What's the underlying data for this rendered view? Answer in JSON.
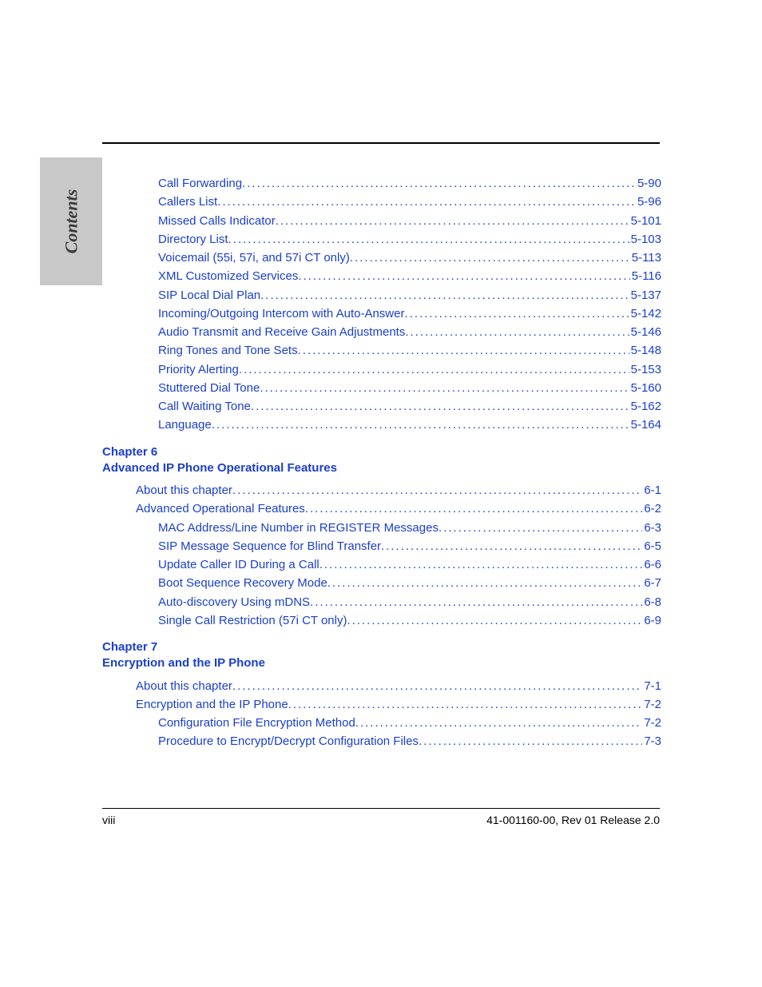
{
  "colors": {
    "link": "#1a3fcc",
    "sidebar_bg": "#c8c8c8",
    "sidebar_text": "#3a3a3a",
    "rule": "#000000",
    "page_bg": "#ffffff",
    "footer_text": "#000000"
  },
  "typography": {
    "body_font": "Arial, Helvetica, sans-serif",
    "body_size_pt": 11,
    "sidebar_font": "Times New Roman, serif",
    "sidebar_style": "italic bold",
    "sidebar_size_pt": 16
  },
  "sidebar": {
    "label": "Contents"
  },
  "sections": [
    {
      "type": "entries",
      "entries": [
        {
          "label": "Call Forwarding",
          "page": "5-90",
          "indent": 2
        },
        {
          "label": "Callers List",
          "page": "5-96",
          "indent": 2
        },
        {
          "label": "Missed Calls Indicator",
          "page": "5-101",
          "indent": 2
        },
        {
          "label": "Directory List",
          "page": "5-103",
          "indent": 2
        },
        {
          "label": "Voicemail (55i, 57i, and 57i CT only)",
          "page": "5-113",
          "indent": 2
        },
        {
          "label": "XML Customized Services",
          "page": "5-116",
          "indent": 2
        },
        {
          "label": "SIP Local Dial Plan",
          "page": "5-137",
          "indent": 2
        },
        {
          "label": "Incoming/Outgoing Intercom with Auto-Answer",
          "page": "5-142",
          "indent": 2
        },
        {
          "label": "Audio Transmit and Receive Gain Adjustments",
          "page": "5-146",
          "indent": 2
        },
        {
          "label": "Ring Tones and Tone Sets",
          "page": "5-148",
          "indent": 2
        },
        {
          "label": "Priority Alerting",
          "page": "5-153",
          "indent": 2
        },
        {
          "label": "Stuttered Dial Tone",
          "page": "5-160",
          "indent": 2
        },
        {
          "label": "Call Waiting Tone",
          "page": "5-162",
          "indent": 2
        },
        {
          "label": "Language",
          "page": "5-164",
          "indent": 2
        }
      ]
    },
    {
      "type": "chapter",
      "chapter_label": "Chapter 6",
      "chapter_title": "Advanced IP Phone Operational Features",
      "entries": [
        {
          "label": "About this chapter",
          "page": "6-1",
          "indent": 1
        },
        {
          "label": "Advanced Operational Features",
          "page": "6-2",
          "indent": 1
        },
        {
          "label": "MAC Address/Line Number in REGISTER Messages",
          "page": "6-3",
          "indent": 2
        },
        {
          "label": "SIP Message Sequence for Blind Transfer",
          "page": "6-5",
          "indent": 2
        },
        {
          "label": "Update Caller ID During a Call",
          "page": "6-6",
          "indent": 2
        },
        {
          "label": "Boot Sequence Recovery Mode",
          "page": "6-7",
          "indent": 2
        },
        {
          "label": "Auto-discovery Using mDNS",
          "page": "6-8",
          "indent": 2
        },
        {
          "label": "Single Call Restriction (57i CT only)",
          "page": "6-9",
          "indent": 2
        }
      ]
    },
    {
      "type": "chapter",
      "chapter_label": "Chapter 7",
      "chapter_title": "Encryption and the IP Phone",
      "entries": [
        {
          "label": "About this chapter",
          "page": "7-1",
          "indent": 1
        },
        {
          "label": "Encryption and the IP Phone",
          "page": "7-2",
          "indent": 1
        },
        {
          "label": "Configuration File Encryption Method",
          "page": "7-2",
          "indent": 2
        },
        {
          "label": "Procedure to Encrypt/Decrypt Configuration Files",
          "page": "7-3",
          "indent": 2
        }
      ]
    }
  ],
  "footer": {
    "left": "viii",
    "right": "41-001160-00, Rev 01  Release 2.0"
  }
}
